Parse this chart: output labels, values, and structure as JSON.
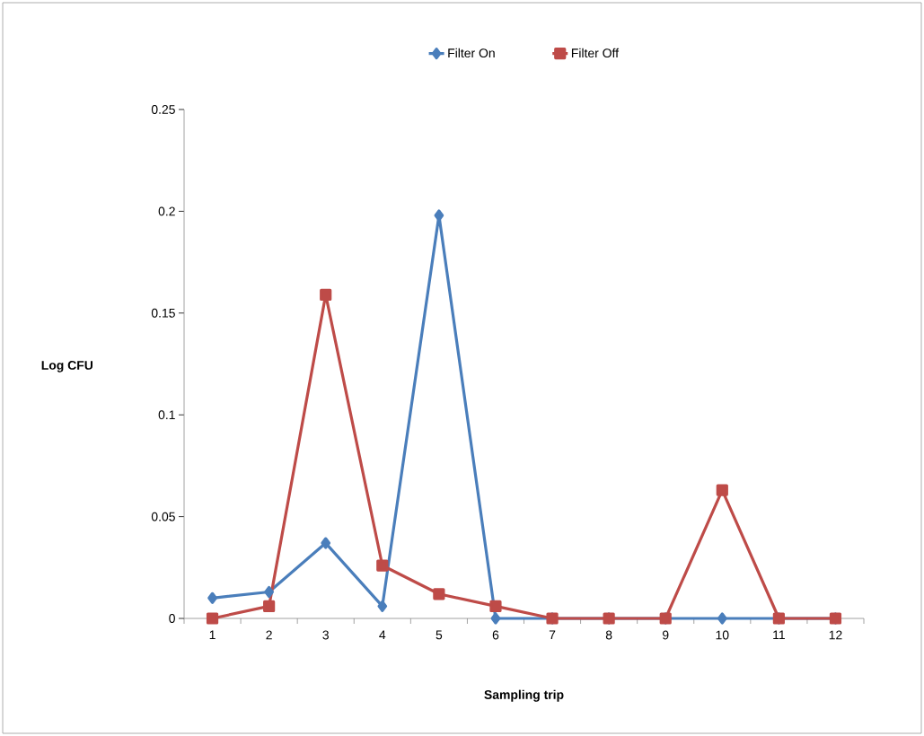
{
  "chart_data": {
    "type": "line",
    "xlabel": "Sampling trip",
    "ylabel": "Log CFU",
    "categories": [
      "1",
      "2",
      "3",
      "4",
      "5",
      "6",
      "7",
      "8",
      "9",
      "10",
      "11",
      "12"
    ],
    "series": [
      {
        "name": "Filter On",
        "color": "#4a7ebb",
        "marker": "diamond",
        "values": [
          0.01,
          0.013,
          0.037,
          0.006,
          0.198,
          0,
          0,
          0,
          0,
          0,
          0,
          0
        ]
      },
      {
        "name": "Filter Off",
        "color": "#be4b48",
        "marker": "square",
        "values": [
          0,
          0.006,
          0.159,
          0.026,
          0.012,
          0.006,
          0,
          0,
          0,
          0.063,
          0,
          0
        ]
      }
    ],
    "ylim": [
      0,
      0.25
    ],
    "yticks": [
      0,
      0.05,
      0.1,
      0.15,
      0.2,
      0.25
    ],
    "legend": "top",
    "grid": false,
    "line_style": "solid"
  }
}
